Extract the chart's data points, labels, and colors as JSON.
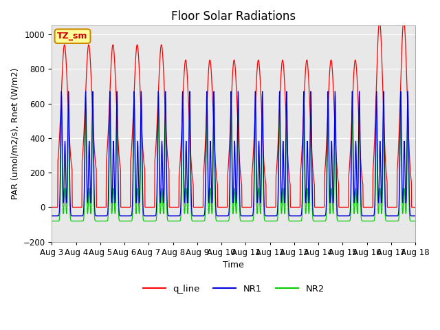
{
  "title": "Floor Solar Radiations",
  "xlabel": "Time",
  "ylabel": "PAR (umol/m2/s), Rnet (W/m2)",
  "ylim": [
    -200,
    1050
  ],
  "yticks": [
    -200,
    0,
    200,
    400,
    600,
    800,
    1000
  ],
  "xtick_days": [
    3,
    4,
    5,
    6,
    7,
    8,
    9,
    10,
    11,
    12,
    13,
    14,
    15,
    16,
    17,
    18
  ],
  "colors": {
    "q_line": "#ff0000",
    "NR1": "#0000dd",
    "NR2": "#00cc00"
  },
  "plot_bg": "#e8e8e8",
  "fig_bg": "#ffffff",
  "annotation_text": "TZ_sm",
  "annotation_fg": "#cc0000",
  "annotation_bg": "#ffff99",
  "annotation_border": "#cc8800",
  "legend_labels": [
    "q_line",
    "NR1",
    "NR2"
  ],
  "title_fontsize": 12,
  "axis_fontsize": 9,
  "tick_fontsize": 8.5,
  "linewidth": 0.9
}
